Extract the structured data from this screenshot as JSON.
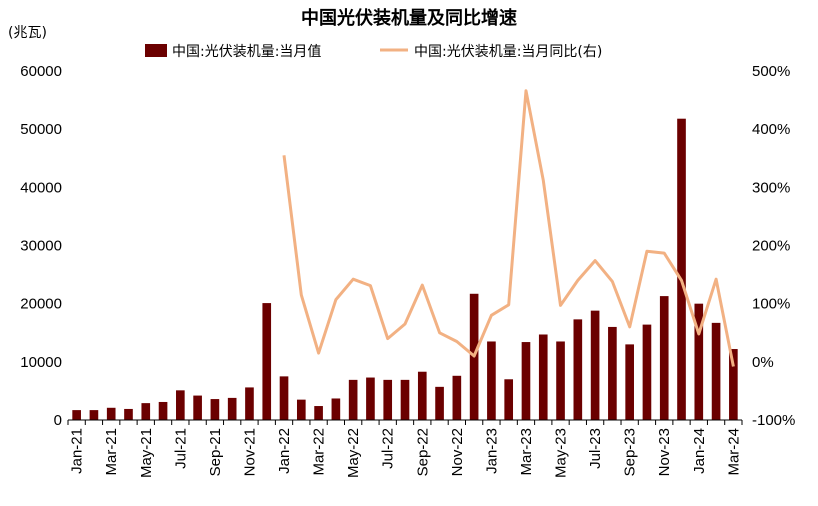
{
  "chart_data": {
    "type": "bar+line",
    "title": "中国光伏装机量及同比增速",
    "y_unit_label": "(兆瓦)",
    "categories": [
      "Jan-21",
      "Feb-21",
      "Mar-21",
      "Apr-21",
      "May-21",
      "Jun-21",
      "Jul-21",
      "Aug-21",
      "Sep-21",
      "Oct-21",
      "Nov-21",
      "Dec-21",
      "Jan-22",
      "Feb-22",
      "Mar-22",
      "Apr-22",
      "May-22",
      "Jun-22",
      "Jul-22",
      "Aug-22",
      "Sep-22",
      "Oct-22",
      "Nov-22",
      "Dec-22",
      "Jan-23",
      "Feb-23",
      "Mar-23",
      "Apr-23",
      "May-23",
      "Jun-23",
      "Jul-23",
      "Aug-23",
      "Sep-23",
      "Oct-23",
      "Nov-23",
      "Dec-23",
      "Jan-24",
      "Feb-24",
      "Mar-24"
    ],
    "x_tick_labels": [
      "Jan-21",
      "",
      "Mar-21",
      "",
      "May-21",
      "",
      "Jul-21",
      "",
      "Sep-21",
      "",
      "Nov-21",
      "",
      "Jan-22",
      "",
      "Mar-22",
      "",
      "May-22",
      "",
      "Jul-22",
      "",
      "Sep-22",
      "",
      "Nov-22",
      "",
      "Jan-23",
      "",
      "Mar-23",
      "",
      "May-23",
      "",
      "Jul-23",
      "",
      "Sep-23",
      "",
      "Nov-23",
      "",
      "Jan-24",
      "",
      "Mar-24"
    ],
    "series": [
      {
        "name": "中国:光伏装机量:当月值",
        "axis": "left",
        "kind": "bar",
        "values": [
          1700,
          1700,
          2100,
          1900,
          2900,
          3100,
          5100,
          4200,
          3600,
          3800,
          5600,
          20100,
          7500,
          3500,
          2400,
          3700,
          6900,
          7300,
          6900,
          6900,
          8300,
          5700,
          7600,
          21700,
          13500,
          7000,
          13400,
          14700,
          13500,
          17300,
          18800,
          16000,
          13000,
          16400,
          21300,
          51800,
          20000,
          16700,
          12200
        ]
      },
      {
        "name": "中国:光伏装机量:当月同比(右)",
        "axis": "right",
        "kind": "line",
        "values": [
          null,
          null,
          null,
          null,
          null,
          null,
          null,
          null,
          null,
          null,
          null,
          null,
          355,
          115,
          15,
          107,
          142,
          131,
          40,
          65,
          132,
          50,
          35,
          10,
          80,
          98,
          466,
          312,
          97,
          140,
          174,
          138,
          60,
          190,
          187,
          140,
          48,
          142,
          -8
        ]
      }
    ],
    "y_left": {
      "min": 0,
      "max": 60000,
      "ticks": [
        "0",
        "10000",
        "20000",
        "30000",
        "40000",
        "50000",
        "60000"
      ]
    },
    "y_right": {
      "min": -100,
      "max": 500,
      "ticks": [
        "-100%",
        "0%",
        "100%",
        "200%",
        "300%",
        "400%",
        "500%"
      ]
    },
    "colors": {
      "bar": "#6b0000",
      "line": "#f2b183",
      "axis": "#000000"
    },
    "legend_position": "top-center",
    "grid": false
  }
}
